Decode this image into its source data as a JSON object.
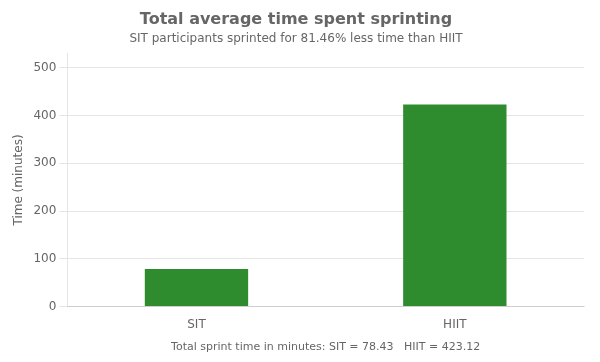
{
  "chart_data": {
    "type": "bar",
    "title": "Total average time spent sprinting",
    "subtitle": "SIT participants sprinted for 81.46% less time than HIIT",
    "ylabel": "Time (minutes)",
    "annotations": [
      "Total sprint time in minutes: SIT = 78.43   HIIT = 423.12"
    ],
    "categories": [
      "SIT",
      "HIIT"
    ],
    "values": [
      78.43,
      423.12
    ],
    "color": "#2e8b2e",
    "ylim": [
      0,
      530
    ],
    "yticks": [
      0,
      100,
      200,
      300,
      400,
      500
    ],
    "grid": true
  }
}
